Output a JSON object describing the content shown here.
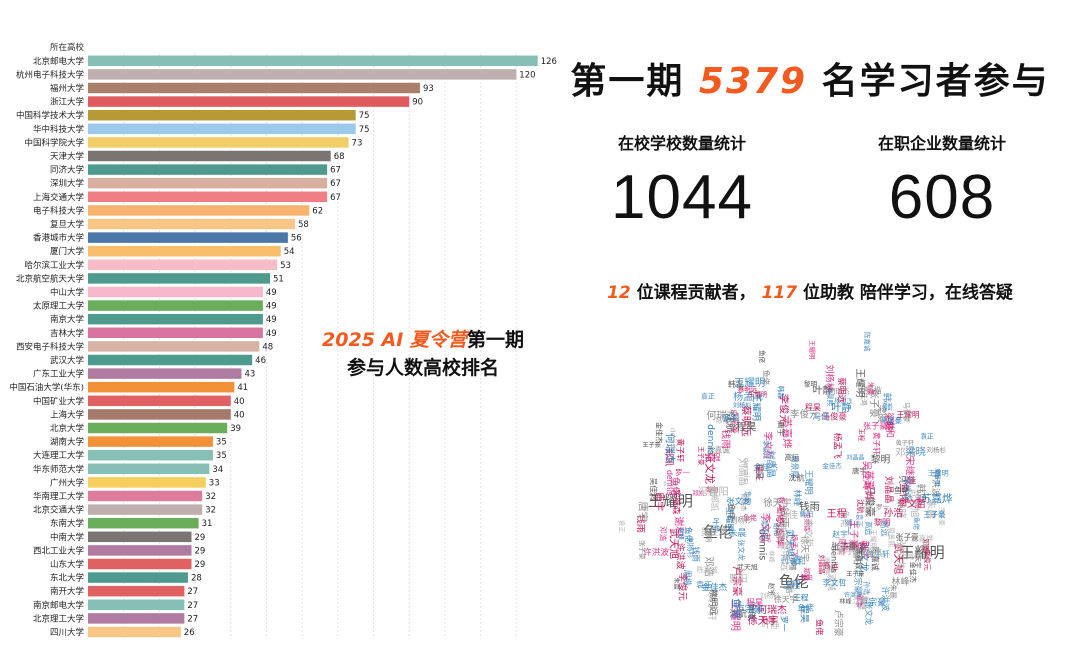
{
  "headline": {
    "prefix": "第一期",
    "number": "5379",
    "suffix": "名学习者参与"
  },
  "stats": [
    {
      "label": "在校学校数量统计",
      "value": "1044"
    },
    {
      "label": "在职企业数量统计",
      "value": "608"
    }
  ],
  "subline": {
    "num1": "12",
    "text1": "位课程贡献者，",
    "num2": "117",
    "text2": "位助教 陪伴学习，在线答疑"
  },
  "chart_title": {
    "line1_accent": "2025 AI 夏令营",
    "line1_rest": "第一期",
    "line2": "参与人数高校排名"
  },
  "chart_data": {
    "type": "bar",
    "orientation": "horizontal",
    "category_header": "所在高校",
    "categories": [
      "北京邮电大学",
      "杭州电子科技大学",
      "福州大学",
      "浙江大学",
      "中国科学技术大学",
      "华中科技大学",
      "中国科学院大学",
      "天津大学",
      "同济大学",
      "深圳大学",
      "上海交通大学",
      "电子科技大学",
      "复旦大学",
      "香港城市大学",
      "厦门大学",
      "哈尔滨工业大学",
      "北京航空航天大学",
      "中山大学",
      "太原理工大学",
      "南京大学",
      "吉林大学",
      "西安电子科技大学",
      "武汉大学",
      "广东工业大学",
      "中国石油大学(华东)",
      "中国矿业大学",
      "上海大学",
      "北京大学",
      "湖南大学",
      "大连理工大学",
      "华东师范大学",
      "广州大学",
      "华南理工大学",
      "北京交通大学",
      "东南大学",
      "中南大学",
      "西北工业大学",
      "山东大学",
      "东北大学",
      "南开大学",
      "南京邮电大学",
      "北京理工大学",
      "四川大学"
    ],
    "values": [
      126,
      120,
      93,
      90,
      75,
      75,
      73,
      68,
      67,
      67,
      67,
      62,
      58,
      56,
      54,
      53,
      51,
      49,
      49,
      49,
      49,
      48,
      46,
      43,
      41,
      40,
      40,
      39,
      35,
      35,
      34,
      33,
      32,
      32,
      31,
      29,
      29,
      29,
      28,
      27,
      27,
      27,
      26
    ],
    "colors": [
      "#86bfb6",
      "#bfb0ad",
      "#a9806b",
      "#e05b5e",
      "#b79a36",
      "#9cc9e9",
      "#f1cf68",
      "#7a7472",
      "#4f9a8f",
      "#d7aea0",
      "#f07f85",
      "#f6b46f",
      "#f8c687",
      "#4a76a8",
      "#f9be6c",
      "#f7bcc6",
      "#4f9a8f",
      "#f7b6cb",
      "#6aad5a",
      "#4f9a8f",
      "#d8729e",
      "#d7b3a6",
      "#4f9a8f",
      "#b07aa1",
      "#f39138",
      "#e06161",
      "#a57a6c",
      "#6aad5a",
      "#f39138",
      "#86bfb6",
      "#86bfb6",
      "#f5ce5e",
      "#dd7d9c",
      "#bfb0ad",
      "#6aad5a",
      "#7a7472",
      "#b07aa1",
      "#e06161",
      "#4f9a8f",
      "#e06161",
      "#86bfb6",
      "#b07aa1",
      "#f8c687"
    ],
    "xlim": [
      0,
      130
    ],
    "grid": true
  },
  "word_cloud": {
    "words": [
      "王耀明",
      "鱼佬",
      "王耀明",
      "鱼佬",
      "金佳杰",
      "卢宗豪",
      "刘杨杉",
      "陈嘉诚",
      "张文龙",
      "dennis",
      "李俊元",
      "王程",
      "周楷",
      "许洪波",
      "鱼佬",
      "叶静",
      "何瑞杰",
      "梁晓",
      "武天旭",
      "苏嘉烨",
      "王子豪",
      "张子豪",
      "刘晶晶",
      "杨孟飞",
      "宋继森",
      "吴佳鸿",
      "赵宇",
      "马俊豪",
      "袁正",
      "徐天宇",
      "黄子轩",
      "李文哲",
      "周景熙",
      "邓浩",
      "林峰",
      "蔡明远",
      "唐宇",
      "韩磊",
      "冯佳",
      "程昊",
      "黎明",
      "孙浩",
      "钱雨",
      "朱晨",
      "沈航",
      "高远",
      "罗一",
      "郑凯",
      "谢和",
      "曹阳"
    ],
    "colors": [
      "#e0348a",
      "#4a90c8",
      "#555555",
      "#8a8a8a",
      "#b5b5b5",
      "#2f7fc1",
      "#c2185b"
    ]
  }
}
